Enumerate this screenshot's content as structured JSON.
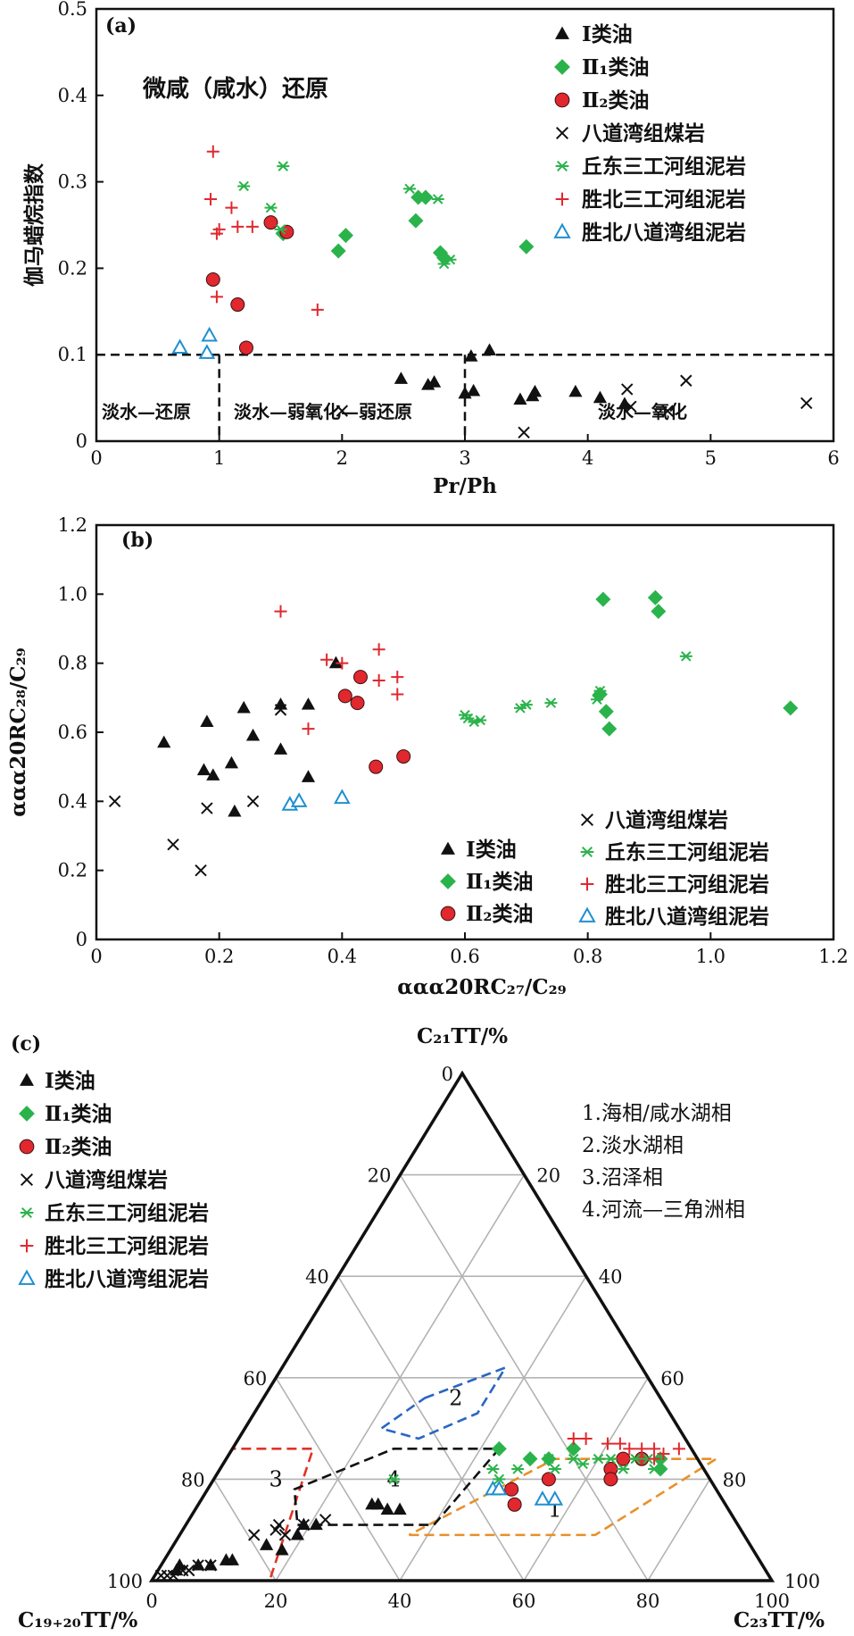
{
  "colors": {
    "class1": "#111111",
    "class21": "#2bb34b",
    "class22": "#e0282e",
    "coal": "#111111",
    "qiudong": "#2bb34b",
    "shengbei_sgh": "#e0282e",
    "shengbei_bdw": "#1f8fd0",
    "zone_marine": "#e8902a",
    "zone_freshwater_lake": "#2a66c4",
    "zone_swamp": "#e03428",
    "zone_fluvial_delta": "#111111"
  },
  "legend": {
    "class1": "Ⅰ类油",
    "class21": "Ⅱ₁类油",
    "class22": "Ⅱ₂类油",
    "coal": "八道湾组煤岩",
    "qiudong": "丘东三工河组泥岩",
    "shengbei_sgh": "胜北三工河组泥岩",
    "shengbei_bdw": "胜北八道湾组泥岩"
  },
  "chart_data": [
    {
      "panel": "(a)",
      "type": "scatter",
      "xlabel": "Pr/Ph",
      "ylabel": "伽马蜡烷指数",
      "xlim": [
        0,
        6
      ],
      "ylim": [
        0,
        0.5
      ],
      "xticks": [
        "0",
        "1",
        "2",
        "3",
        "4",
        "5",
        "6"
      ],
      "yticks": [
        "0",
        "0.1",
        "0.2",
        "0.3",
        "0.4",
        "0.5"
      ],
      "annotations": {
        "top": "微咸（咸水）还原",
        "fresh_reducing": "淡水—还原",
        "fresh_weak": "淡水—弱氧化—弱还原",
        "fresh_oxidizing": "淡水—氧化"
      },
      "reference_lines": {
        "y": 0.1,
        "x": [
          1.0,
          3.0
        ]
      },
      "series": [
        {
          "name": "Ⅰ类油",
          "key": "class1",
          "marker": "triangle-filled",
          "points": [
            [
              2.48,
              0.072
            ],
            [
              2.7,
              0.065
            ],
            [
              2.75,
              0.068
            ],
            [
              3.0,
              0.055
            ],
            [
              3.05,
              0.098
            ],
            [
              3.07,
              0.058
            ],
            [
              3.2,
              0.105
            ],
            [
              3.45,
              0.048
            ],
            [
              3.55,
              0.052
            ],
            [
              3.57,
              0.057
            ],
            [
              3.9,
              0.057
            ],
            [
              4.1,
              0.05
            ],
            [
              4.3,
              0.043
            ]
          ]
        },
        {
          "name": "Ⅱ₁类油",
          "key": "class21",
          "marker": "diamond-filled",
          "points": [
            [
              1.52,
              0.24
            ],
            [
              1.97,
              0.22
            ],
            [
              2.03,
              0.238
            ],
            [
              2.6,
              0.255
            ],
            [
              2.62,
              0.282
            ],
            [
              2.68,
              0.282
            ],
            [
              2.8,
              0.218
            ],
            [
              2.83,
              0.212
            ],
            [
              3.5,
              0.225
            ]
          ]
        },
        {
          "name": "Ⅱ₂类油",
          "key": "class22",
          "marker": "circle-filled",
          "points": [
            [
              0.95,
              0.187
            ],
            [
              1.15,
              0.158
            ],
            [
              1.22,
              0.108
            ],
            [
              1.42,
              0.253
            ],
            [
              1.55,
              0.242
            ]
          ]
        },
        {
          "name": "八道湾组煤岩",
          "key": "coal",
          "marker": "x",
          "points": [
            [
              2.0,
              0.035
            ],
            [
              3.48,
              0.01
            ],
            [
              4.32,
              0.06
            ],
            [
              4.35,
              0.04
            ],
            [
              4.65,
              0.035
            ],
            [
              4.8,
              0.07
            ],
            [
              5.78,
              0.044
            ]
          ]
        },
        {
          "name": "丘东三工河组泥岩",
          "key": "qiudong",
          "marker": "asterisk",
          "points": [
            [
              1.2,
              0.295
            ],
            [
              1.42,
              0.27
            ],
            [
              1.5,
              0.245
            ],
            [
              1.52,
              0.318
            ],
            [
              2.55,
              0.292
            ],
            [
              2.78,
              0.28
            ],
            [
              2.83,
              0.205
            ],
            [
              2.88,
              0.21
            ]
          ]
        },
        {
          "name": "胜北三工河组泥岩",
          "key": "shengbei_sgh",
          "marker": "plus",
          "points": [
            [
              0.95,
              0.335
            ],
            [
              0.93,
              0.28
            ],
            [
              0.98,
              0.24
            ],
            [
              1.0,
              0.245
            ],
            [
              0.98,
              0.167
            ],
            [
              1.1,
              0.27
            ],
            [
              1.15,
              0.248
            ],
            [
              1.27,
              0.248
            ],
            [
              1.8,
              0.152
            ]
          ]
        },
        {
          "name": "胜北八道湾组泥岩",
          "key": "shengbei_bdw",
          "marker": "triangle-open",
          "points": [
            [
              0.68,
              0.108
            ],
            [
              0.9,
              0.102
            ],
            [
              0.92,
              0.122
            ]
          ]
        }
      ]
    },
    {
      "panel": "(b)",
      "type": "scatter",
      "xlabel": "ααα20RC₂₇/C₂₉",
      "ylabel": "ααα20RC₂₈/C₂₉",
      "xlim": [
        0,
        1.2
      ],
      "ylim": [
        0,
        1.2
      ],
      "xticks": [
        "0",
        "0.2",
        "0.4",
        "0.6",
        "0.8",
        "1.0",
        "1.2"
      ],
      "yticks": [
        "0",
        "0.2",
        "0.4",
        "0.6",
        "0.8",
        "1.0",
        "1.2"
      ],
      "series": [
        {
          "name": "Ⅰ类油",
          "key": "class1",
          "marker": "triangle-filled",
          "points": [
            [
              0.11,
              0.57
            ],
            [
              0.175,
              0.49
            ],
            [
              0.18,
              0.63
            ],
            [
              0.19,
              0.475
            ],
            [
              0.22,
              0.51
            ],
            [
              0.225,
              0.37
            ],
            [
              0.24,
              0.67
            ],
            [
              0.255,
              0.59
            ],
            [
              0.3,
              0.55
            ],
            [
              0.345,
              0.68
            ],
            [
              0.345,
              0.47
            ],
            [
              0.3,
              0.68
            ],
            [
              0.39,
              0.8
            ]
          ]
        },
        {
          "name": "Ⅱ₁类油",
          "key": "class21",
          "marker": "diamond-filled",
          "points": [
            [
              0.825,
              0.985
            ],
            [
              0.91,
              0.99
            ],
            [
              0.915,
              0.95
            ],
            [
              0.82,
              0.71
            ],
            [
              0.83,
              0.66
            ],
            [
              0.835,
              0.61
            ],
            [
              1.13,
              0.67
            ]
          ]
        },
        {
          "name": "Ⅱ₂类油",
          "key": "class22",
          "marker": "circle-filled",
          "points": [
            [
              0.405,
              0.705
            ],
            [
              0.425,
              0.685
            ],
            [
              0.43,
              0.76
            ],
            [
              0.455,
              0.5
            ],
            [
              0.5,
              0.53
            ]
          ]
        },
        {
          "name": "八道湾组煤岩",
          "key": "coal",
          "marker": "x",
          "points": [
            [
              0.03,
              0.4
            ],
            [
              0.125,
              0.275
            ],
            [
              0.17,
              0.2
            ],
            [
              0.18,
              0.38
            ],
            [
              0.255,
              0.4
            ],
            [
              0.3,
              0.665
            ]
          ]
        },
        {
          "name": "丘东三工河组泥岩",
          "key": "qiudong",
          "marker": "asterisk",
          "points": [
            [
              0.6,
              0.65
            ],
            [
              0.605,
              0.64
            ],
            [
              0.615,
              0.63
            ],
            [
              0.625,
              0.635
            ],
            [
              0.69,
              0.67
            ],
            [
              0.7,
              0.68
            ],
            [
              0.74,
              0.685
            ],
            [
              0.815,
              0.695
            ],
            [
              0.82,
              0.72
            ],
            [
              0.96,
              0.82
            ]
          ]
        },
        {
          "name": "胜北三工河组泥岩",
          "key": "shengbei_sgh",
          "marker": "plus",
          "points": [
            [
              0.3,
              0.95
            ],
            [
              0.375,
              0.81
            ],
            [
              0.4,
              0.8
            ],
            [
              0.46,
              0.84
            ],
            [
              0.46,
              0.75
            ],
            [
              0.49,
              0.76
            ],
            [
              0.49,
              0.71
            ],
            [
              0.345,
              0.61
            ]
          ]
        },
        {
          "name": "胜北八道湾组泥岩",
          "key": "shengbei_bdw",
          "marker": "triangle-open",
          "points": [
            [
              0.315,
              0.39
            ],
            [
              0.33,
              0.4
            ],
            [
              0.4,
              0.41
            ]
          ]
        }
      ]
    },
    {
      "panel": "(c)",
      "type": "ternary",
      "axes": {
        "top": "C₂₁TT/%",
        "left": "C₁₉₊₂₀TT/%",
        "right": "C₂₃TT/%"
      },
      "ticks": {
        "bottom": [
          "0",
          "20",
          "40",
          "60",
          "80",
          "100"
        ],
        "left": [
          "100",
          "80",
          "60",
          "40",
          "20",
          "0"
        ],
        "right": [
          "100",
          "80",
          "60",
          "40",
          "20"
        ]
      },
      "zones": [
        {
          "id": "1",
          "label": "1.海相/咸水湖相",
          "color_key": "zone_marine"
        },
        {
          "id": "2",
          "label": "2.淡水湖相",
          "color_key": "zone_freshwater_lake"
        },
        {
          "id": "3",
          "label": "3.沼泽相",
          "color_key": "zone_swamp"
        },
        {
          "id": "4",
          "label": "4.河流—三角洲相",
          "color_key": "zone_fluvial_delta"
        }
      ],
      "point_order": "[C23TT %, C21TT %]",
      "series": [
        {
          "name": "Ⅰ类油",
          "key": "class1",
          "marker": "triangle-filled",
          "points": [
            [
              3,
              2
            ],
            [
              3,
              3
            ],
            [
              6,
              3
            ],
            [
              8,
              3
            ],
            [
              10,
              4
            ],
            [
              11,
              4
            ],
            [
              15,
              7
            ],
            [
              18,
              6
            ],
            [
              19,
              9
            ],
            [
              19,
              11
            ],
            [
              21,
              11
            ],
            [
              28,
              15
            ],
            [
              29,
              15
            ],
            [
              31,
              14
            ],
            [
              33,
              14
            ]
          ]
        },
        {
          "name": "Ⅱ₁类油",
          "key": "class21",
          "marker": "diamond-filled",
          "points": [
            [
              43,
              26
            ],
            [
              49,
              24
            ],
            [
              52,
              24
            ],
            [
              55,
              26
            ],
            [
              70,
              24
            ],
            [
              71,
              22
            ]
          ]
        },
        {
          "name": "Ⅱ₂类油",
          "key": "class22",
          "marker": "circle-filled",
          "points": [
            [
              49,
              18
            ],
            [
              54,
              20
            ],
            [
              63,
              22
            ],
            [
              64,
              20
            ],
            [
              64,
              24
            ],
            [
              67,
              24
            ],
            [
              51,
              15
            ]
          ]
        },
        {
          "name": "八道湾组煤岩",
          "key": "coal",
          "marker": "x",
          "points": [
            [
              1,
              1
            ],
            [
              2,
              1
            ],
            [
              3,
              1
            ],
            [
              4,
              2
            ],
            [
              5,
              2
            ],
            [
              6,
              3
            ],
            [
              8,
              3
            ],
            [
              12,
              9
            ],
            [
              15,
              10
            ],
            [
              15,
              11
            ],
            [
              17,
              9
            ],
            [
              19,
              11
            ],
            [
              22,
              12
            ]
          ]
        },
        {
          "name": "丘东三工河组泥岩",
          "key": "qiudong",
          "marker": "asterisk",
          "points": [
            [
              29,
              20
            ],
            [
              44,
              22
            ],
            [
              46,
              20
            ],
            [
              48,
              22
            ],
            [
              52,
              24
            ],
            [
              54,
              22
            ],
            [
              56,
              24
            ],
            [
              58,
              23
            ],
            [
              60,
              24
            ],
            [
              62,
              24
            ],
            [
              65,
              22
            ],
            [
              66,
              24
            ],
            [
              68,
              24
            ],
            [
              70,
              22
            ]
          ]
        },
        {
          "name": "胜北三工河组泥岩",
          "key": "shengbei_sgh",
          "marker": "plus",
          "points": [
            [
              54,
              28
            ],
            [
              56,
              28
            ],
            [
              60,
              27
            ],
            [
              62,
              27
            ],
            [
              64,
              26
            ],
            [
              66,
              26
            ],
            [
              68,
              26
            ],
            [
              69,
              24
            ],
            [
              70,
              25
            ],
            [
              72,
              26
            ]
          ]
        },
        {
          "name": "胜北八道湾组泥岩",
          "key": "shengbei_bdw",
          "marker": "triangle-open",
          "points": [
            [
              46,
              18
            ],
            [
              47,
              18
            ],
            [
              55,
              16
            ],
            [
              57,
              16
            ]
          ]
        }
      ]
    }
  ]
}
